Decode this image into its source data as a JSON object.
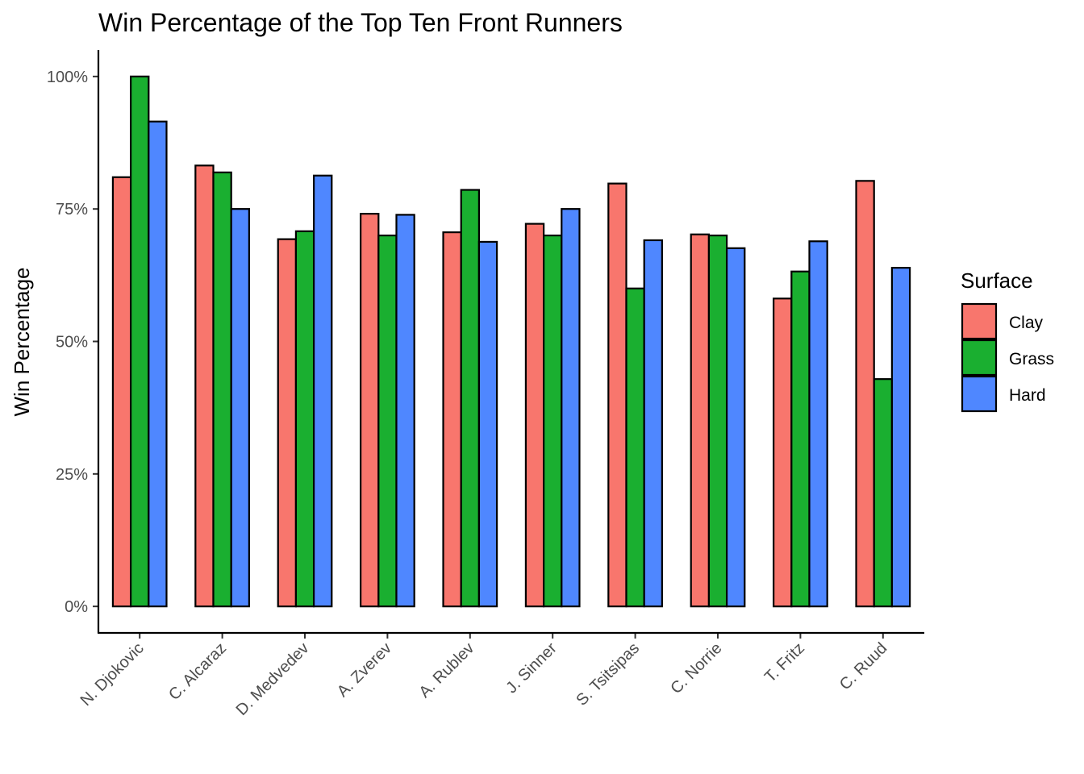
{
  "chart_data": {
    "type": "bar",
    "title": "Win Percentage of the Top Ten Front Runners",
    "xlabel": "",
    "ylabel": "Win Percentage",
    "categories": [
      "N. Djokovic",
      "C. Alcaraz",
      "D. Medvedev",
      "A. Zverev",
      "A. Rublev",
      "J. Sinner",
      "S. Tsitsipas",
      "C. Norrie",
      "T. Fritz",
      "C. Ruud"
    ],
    "series": [
      {
        "name": "Clay",
        "color": "#F8766D",
        "values": [
          81.0,
          83.2,
          69.3,
          74.1,
          70.6,
          72.2,
          79.8,
          70.2,
          58.1,
          80.3
        ]
      },
      {
        "name": "Grass",
        "color": "#1AAF30",
        "values": [
          100.0,
          81.9,
          70.8,
          70.0,
          78.6,
          70.0,
          60.0,
          70.0,
          63.2,
          42.9
        ]
      },
      {
        "name": "Hard",
        "color": "#4F87FF",
        "values": [
          91.5,
          75.0,
          81.3,
          73.9,
          68.8,
          75.0,
          69.1,
          67.6,
          68.9,
          63.9
        ]
      }
    ],
    "ylim": [
      -5,
      105
    ],
    "yticks": [
      0,
      25,
      50,
      75,
      100
    ],
    "ytick_labels": [
      "0%",
      "25%",
      "50%",
      "75%",
      "100%"
    ],
    "grid": false,
    "legend": {
      "title": "Surface",
      "position": "right",
      "entries": [
        "Clay",
        "Grass",
        "Hard"
      ]
    }
  }
}
